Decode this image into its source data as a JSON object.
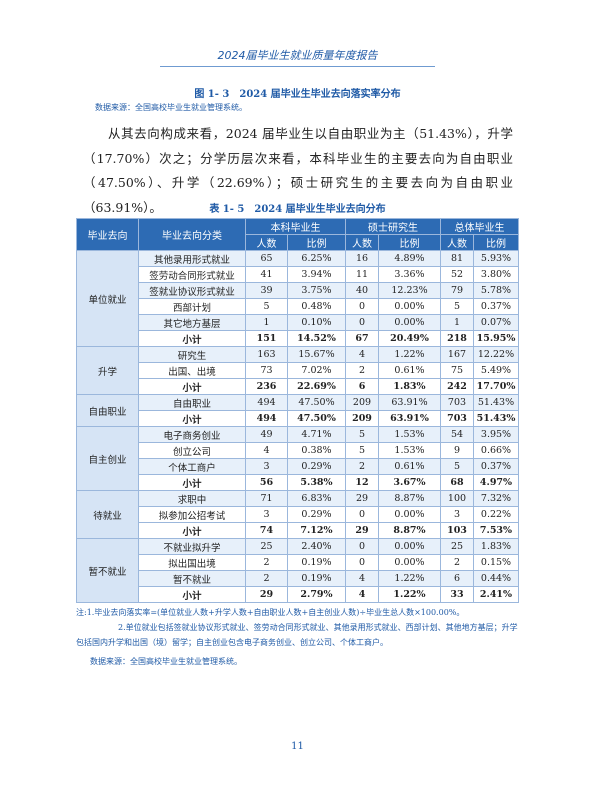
{
  "header": {
    "title": "2024届毕业生就业质量年度报告"
  },
  "figure_caption": "图 1- 3　2024 届毕业生毕业去向落实率分布",
  "figure_source": "数据来源：全国高校毕业生就业管理系统。",
  "paragraph": "从其去向构成来看，2024 届毕业生以自由职业为主（51.43%），升学（17.70%）次之；分学历层次来看，本科毕业生的主要去向为自由职业（47.50%）、升学（22.69%）；硕士研究生的主要去向为自由职业（63.91%）。",
  "table": {
    "title": "表 1- 5　2024 届毕业生毕业去向分布",
    "header": {
      "col1": "毕业去向",
      "col2": "毕业去向分类",
      "groups": [
        "本科毕业生",
        "硕士研究生",
        "总体毕业生"
      ],
      "subheaders": [
        "人数",
        "比例",
        "人数",
        "比例",
        "人数",
        "比例"
      ]
    },
    "groups": [
      {
        "name": "单位就业",
        "rows": [
          [
            "其他录用形式就业",
            65,
            "6.25%",
            16,
            "4.89%",
            81,
            "5.93%"
          ],
          [
            "签劳动合同形式就业",
            41,
            "3.94%",
            11,
            "3.36%",
            52,
            "3.80%"
          ],
          [
            "签就业协议形式就业",
            39,
            "3.75%",
            40,
            "12.23%",
            79,
            "5.78%"
          ],
          [
            "西部计划",
            5,
            "0.48%",
            0,
            "0.00%",
            5,
            "0.37%"
          ],
          [
            "其它地方基层",
            1,
            "0.10%",
            0,
            "0.00%",
            1,
            "0.07%"
          ]
        ],
        "subtotal": {
          "label": "小计",
          "values": [
            151,
            "14.52%",
            67,
            "20.49%",
            218,
            "15.95%"
          ]
        }
      },
      {
        "name": "升学",
        "rows": [
          [
            "研究生",
            163,
            "15.67%",
            4,
            "1.22%",
            167,
            "12.22%"
          ],
          [
            "出国、出境",
            73,
            "7.02%",
            2,
            "0.61%",
            75,
            "5.49%"
          ]
        ],
        "subtotal": {
          "label": "小计",
          "values": [
            236,
            "22.69%",
            6,
            "1.83%",
            242,
            "17.70%"
          ]
        }
      },
      {
        "name": "自由职业",
        "rows": [
          [
            "自由职业",
            494,
            "47.50%",
            209,
            "63.91%",
            703,
            "51.43%"
          ]
        ],
        "subtotal": {
          "label": "小计",
          "values": [
            494,
            "47.50%",
            209,
            "63.91%",
            703,
            "51.43%"
          ]
        }
      },
      {
        "name": "自主创业",
        "rows": [
          [
            "电子商务创业",
            49,
            "4.71%",
            5,
            "1.53%",
            54,
            "3.95%"
          ],
          [
            "创立公司",
            4,
            "0.38%",
            5,
            "1.53%",
            9,
            "0.66%"
          ],
          [
            "个体工商户",
            3,
            "0.29%",
            2,
            "0.61%",
            5,
            "0.37%"
          ]
        ],
        "subtotal": {
          "label": "小计",
          "values": [
            56,
            "5.38%",
            12,
            "3.67%",
            68,
            "4.97%"
          ]
        }
      },
      {
        "name": "待就业",
        "rows": [
          [
            "求职中",
            71,
            "6.83%",
            29,
            "8.87%",
            100,
            "7.32%"
          ],
          [
            "拟参加公招考试",
            3,
            "0.29%",
            0,
            "0.00%",
            3,
            "0.22%"
          ]
        ],
        "subtotal": {
          "label": "小计",
          "values": [
            74,
            "7.12%",
            29,
            "8.87%",
            103,
            "7.53%"
          ]
        }
      },
      {
        "name": "暂不就业",
        "rows": [
          [
            "不就业拟升学",
            25,
            "2.40%",
            0,
            "0.00%",
            25,
            "1.83%"
          ],
          [
            "拟出国出境",
            2,
            "0.19%",
            0,
            "0.00%",
            2,
            "0.15%"
          ],
          [
            "暂不就业",
            2,
            "0.19%",
            4,
            "1.22%",
            6,
            "0.44%"
          ]
        ],
        "subtotal": {
          "label": "小计",
          "values": [
            29,
            "2.79%",
            4,
            "1.22%",
            33,
            "2.41%"
          ]
        }
      }
    ]
  },
  "notes": [
    "注:1.毕业去向落实率=(单位就业人数+升学人数+自由职业人数+自主创业人数)÷毕业生总人数×100.00%。",
    "2.单位就业包括签就业协议形式就业、签劳动合同形式就业、其他录用形式就业、西部计划、其他地方基层；升学包括国内升学和出国（境）留学；自主创业包含电子商务创业、创立公司、个体工商户。"
  ],
  "table_source": "数据来源：全国高校毕业生就业管理系统。",
  "page_number": "11"
}
